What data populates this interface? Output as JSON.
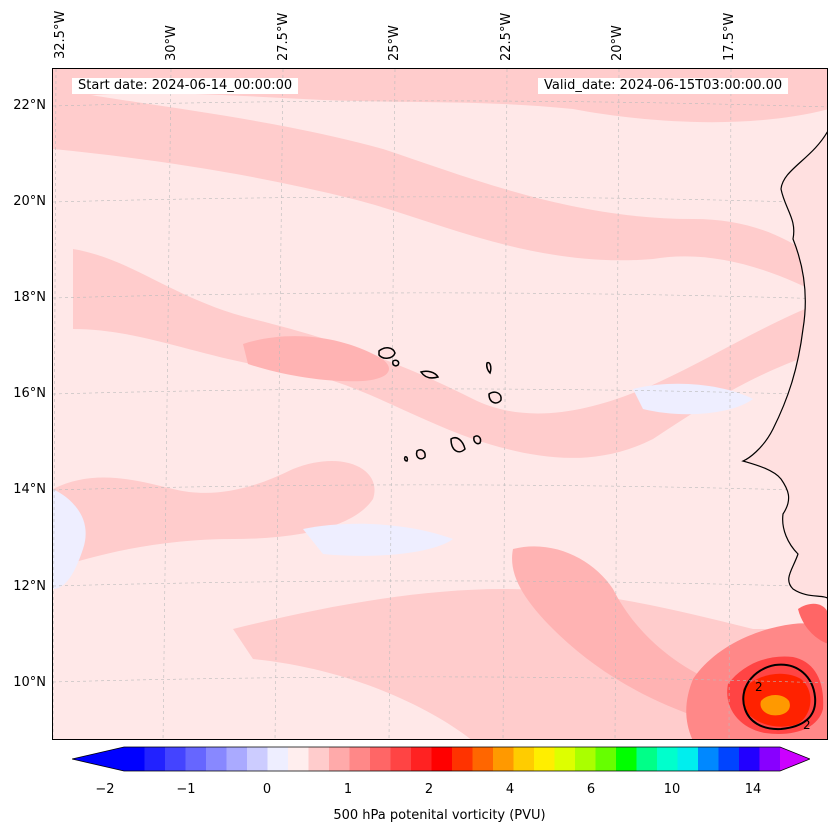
{
  "header": {
    "start_date": "Start date: 2024-06-14_00:00:00",
    "valid_date": "Valid_date: 2024-06-15T03:00:00.00"
  },
  "map": {
    "lon_labels": [
      "32.5°W",
      "30°W",
      "27.5°W",
      "25°W",
      "22.5°W",
      "20°W",
      "17.5°W"
    ],
    "lat_labels": [
      "22°N",
      "20°N",
      "18°N",
      "16°N",
      "14°N",
      "12°N",
      "10°N"
    ],
    "contour_labels": [
      "2",
      "2"
    ],
    "colors": {
      "background_pv": "#ffe8e8",
      "coast": "#000000"
    }
  },
  "colorbar": {
    "label": "500 hPa potenital vorticity (PVU)",
    "ticks": [
      "−2",
      "−1",
      "0",
      "1",
      "2",
      "4",
      "6",
      "10",
      "14"
    ],
    "colors": [
      "#0000ff",
      "#2222ff",
      "#4444ff",
      "#6666ff",
      "#8888ff",
      "#aaaaff",
      "#ccccff",
      "#eeeeff",
      "#ffeeee",
      "#ffcccc",
      "#ffaaaa",
      "#ff8888",
      "#ff6666",
      "#ff4444",
      "#ff2222",
      "#ff0000",
      "#ff3300",
      "#ff6600",
      "#ff9900",
      "#ffcc00",
      "#ffee00",
      "#ddff00",
      "#aaff00",
      "#66ff00",
      "#00ff00",
      "#00ff88",
      "#00ffcc",
      "#00eeee",
      "#0088ff",
      "#0044ff",
      "#2200ff",
      "#8800ff"
    ],
    "extend_min_color": "#0000ff",
    "extend_max_color": "#cc00ff"
  }
}
